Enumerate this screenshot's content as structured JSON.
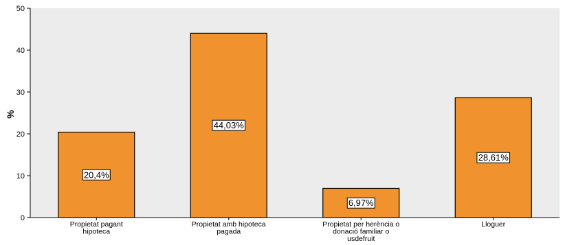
{
  "chart_data": {
    "type": "bar",
    "categories": [
      [
        "Propietat pagant",
        "hipoteca"
      ],
      [
        "Propietat amb hipoteca",
        "pagada"
      ],
      [
        "Propietat per herència o",
        "donació familiar o",
        "usdefruit"
      ],
      [
        "Lloguer"
      ]
    ],
    "values": [
      20.4,
      44.03,
      6.97,
      28.61
    ],
    "data_labels": [
      "20,4%",
      "44,03%",
      "6,97%",
      "28,61%"
    ],
    "title": "",
    "xlabel": "",
    "ylabel": "%",
    "ylim": [
      0,
      50
    ],
    "yticks": [
      0,
      10,
      20,
      30,
      40,
      50
    ],
    "ytick_labels": [
      "0",
      "10",
      "20",
      "30",
      "40",
      "50"
    ],
    "grid": false,
    "legend": "none",
    "colors": {
      "bar_fill": "#f0932f",
      "bar_stroke": "#000000",
      "plot_background": "#ececec",
      "axis": "#000000",
      "label_box_fill": "#ffffff"
    }
  }
}
